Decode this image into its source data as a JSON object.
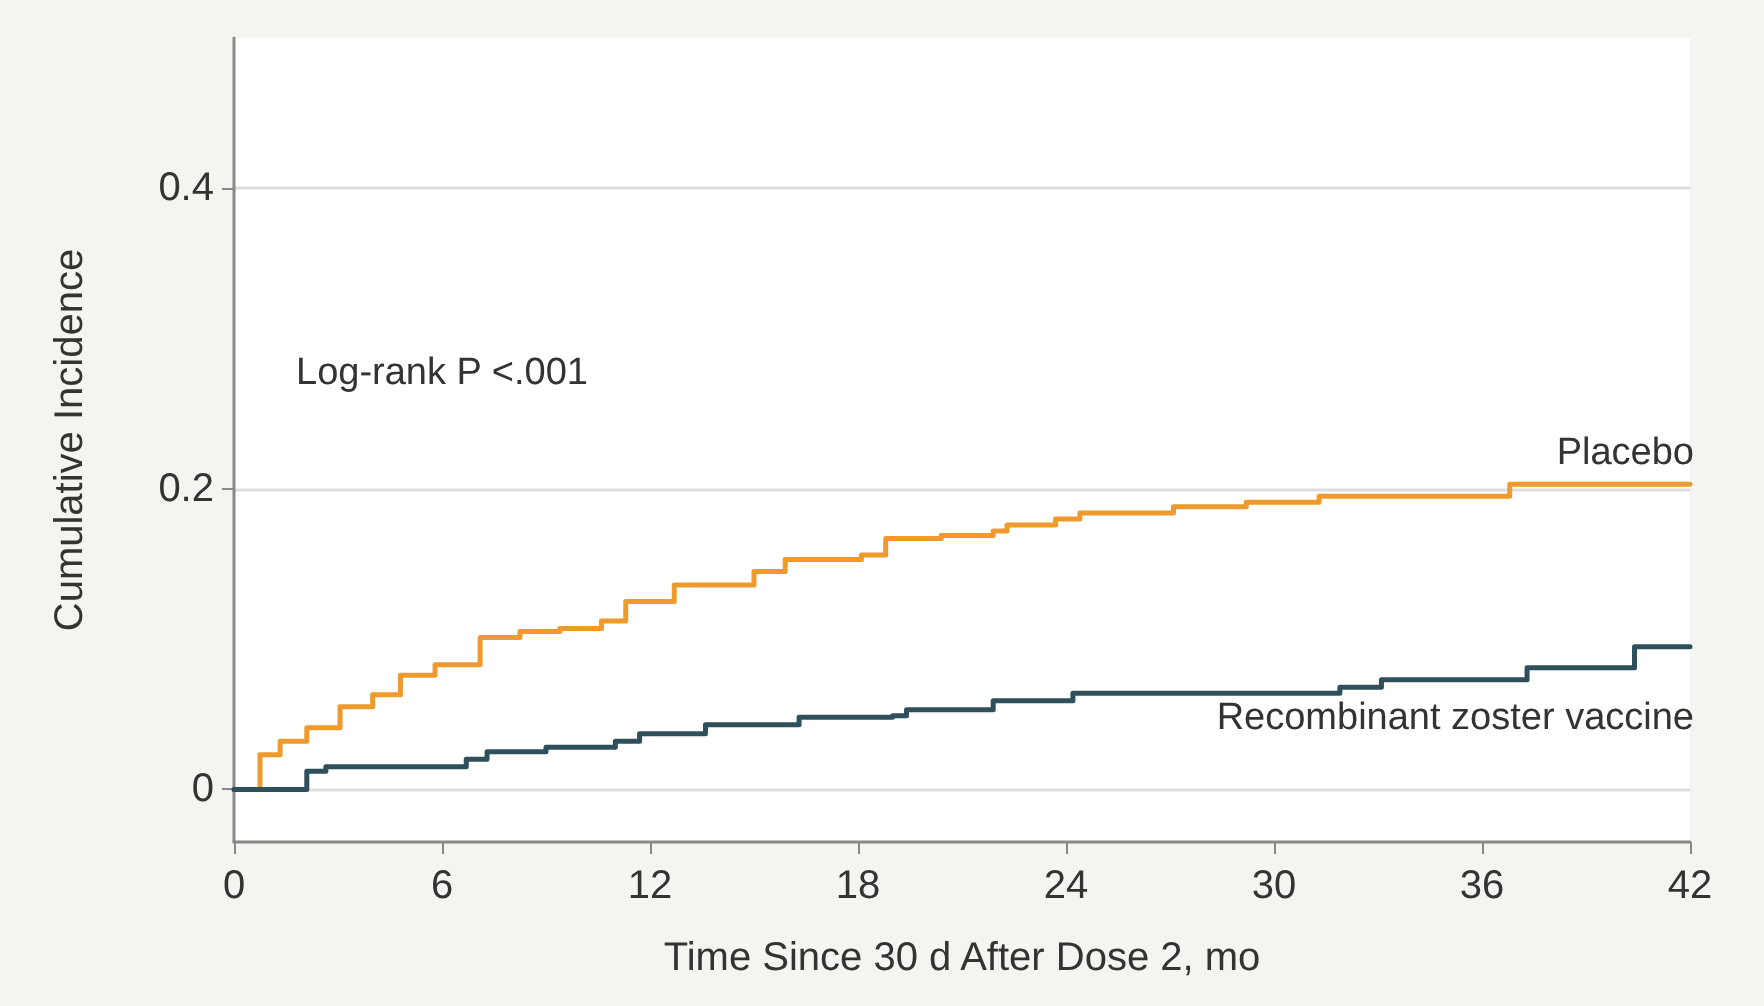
{
  "chart_data": {
    "type": "step",
    "xlabel": "Time Since 30 d After Dose 2, mo",
    "ylabel": "Cumulative Incidence",
    "annotations": [
      "Log-rank P <.001"
    ],
    "xlim": [
      0,
      42
    ],
    "xticks": [
      0,
      6,
      12,
      18,
      24,
      30,
      36,
      42
    ],
    "ylim": [
      -0.035,
      0.5
    ],
    "yticks": [
      0,
      0.2,
      0.4
    ],
    "grid": "y",
    "legend": false,
    "marker": "none",
    "line_style": "solid",
    "series": [
      {
        "name": "Placebo",
        "color": "#ee9a2c",
        "x": [
          0,
          0.75,
          1.33,
          2.1,
          3.06,
          4.0,
          4.8,
          5.8,
          7.1,
          8.25,
          9.4,
          10.6,
          11.3,
          12.7,
          14.4,
          15.0,
          15.9,
          18.1,
          18.8,
          20.4,
          21.9,
          22.3,
          23.7,
          24.4,
          27.1,
          29.2,
          31.3,
          36.7,
          36.8,
          42
        ],
        "values": [
          0,
          0.023,
          0.032,
          0.041,
          0.055,
          0.063,
          0.076,
          0.083,
          0.101,
          0.105,
          0.107,
          0.112,
          0.125,
          0.136,
          0.136,
          0.145,
          0.153,
          0.156,
          0.167,
          0.169,
          0.172,
          0.176,
          0.18,
          0.184,
          0.188,
          0.191,
          0.195,
          0.195,
          0.203,
          0.203
        ]
      },
      {
        "name": "Recombinant zoster vaccine",
        "color": "#2f4f5c",
        "x": [
          0,
          2.1,
          2.65,
          6.7,
          7.3,
          9.0,
          11.0,
          11.7,
          13.6,
          16.3,
          19.0,
          19.4,
          21.3,
          21.9,
          24.2,
          31.7,
          31.9,
          33.1,
          37.2,
          37.3,
          40.3,
          40.4,
          42
        ],
        "values": [
          0,
          0.012,
          0.015,
          0.02,
          0.025,
          0.028,
          0.032,
          0.037,
          0.043,
          0.048,
          0.049,
          0.053,
          0.053,
          0.059,
          0.064,
          0.064,
          0.068,
          0.073,
          0.073,
          0.081,
          0.081,
          0.095,
          0.095
        ]
      }
    ]
  }
}
